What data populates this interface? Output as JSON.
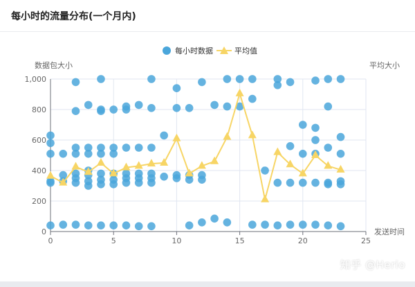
{
  "page": {
    "title": "每小时的流量分布(一个月内)",
    "watermark": "知乎 @Herio"
  },
  "colors": {
    "scatter": "#4aa6db",
    "line": "#f7d565",
    "axis": "#6e7079",
    "grid": "#e0e6f1",
    "text": "#666666"
  },
  "chart_data": {
    "type": "scatter",
    "title": "",
    "ylabel_left": "数据包大小",
    "ylabel_right": "平均大小",
    "xlabel": "发送时间",
    "xlim": [
      0,
      25
    ],
    "ylim": [
      0,
      1000
    ],
    "xticks": [
      0,
      5,
      10,
      15,
      20,
      25
    ],
    "yticks": [
      0,
      200,
      400,
      600,
      800,
      1000
    ],
    "ytick_labels": [
      "0",
      "200",
      "400",
      "600",
      "800",
      "1,000"
    ],
    "legend": [
      "每小时数据",
      "平均值"
    ],
    "legend_position": "top-center",
    "grid": true,
    "series": [
      {
        "name": "每小时数据",
        "type": "scatter",
        "points": [
          [
            0,
            40
          ],
          [
            0,
            320
          ],
          [
            0,
            330
          ],
          [
            0,
            510
          ],
          [
            0,
            580
          ],
          [
            0,
            630
          ],
          [
            1,
            45
          ],
          [
            1,
            330
          ],
          [
            1,
            370
          ],
          [
            1,
            510
          ],
          [
            2,
            45
          ],
          [
            2,
            320
          ],
          [
            2,
            350
          ],
          [
            2,
            380
          ],
          [
            2,
            510
          ],
          [
            2,
            550
          ],
          [
            2,
            790
          ],
          [
            2,
            980
          ],
          [
            3,
            40
          ],
          [
            3,
            300
          ],
          [
            3,
            330
          ],
          [
            3,
            370
          ],
          [
            3,
            400
          ],
          [
            3,
            510
          ],
          [
            3,
            550
          ],
          [
            3,
            830
          ],
          [
            4,
            40
          ],
          [
            4,
            310
          ],
          [
            4,
            340
          ],
          [
            4,
            380
          ],
          [
            4,
            510
          ],
          [
            4,
            550
          ],
          [
            4,
            790
          ],
          [
            4,
            800
          ],
          [
            4,
            1000
          ],
          [
            5,
            40
          ],
          [
            5,
            310
          ],
          [
            5,
            340
          ],
          [
            5,
            380
          ],
          [
            5,
            510
          ],
          [
            5,
            550
          ],
          [
            5,
            800
          ],
          [
            6,
            40
          ],
          [
            6,
            320
          ],
          [
            6,
            350
          ],
          [
            6,
            380
          ],
          [
            6,
            550
          ],
          [
            6,
            800
          ],
          [
            6,
            820
          ],
          [
            7,
            35
          ],
          [
            7,
            320
          ],
          [
            7,
            350
          ],
          [
            7,
            380
          ],
          [
            7,
            550
          ],
          [
            7,
            830
          ],
          [
            8,
            35
          ],
          [
            8,
            320
          ],
          [
            8,
            350
          ],
          [
            8,
            380
          ],
          [
            8,
            550
          ],
          [
            8,
            810
          ],
          [
            8,
            1000
          ],
          [
            9,
            360
          ],
          [
            9,
            630
          ],
          [
            10,
            350
          ],
          [
            10,
            370
          ],
          [
            10,
            810
          ],
          [
            10,
            940
          ],
          [
            11,
            40
          ],
          [
            11,
            340
          ],
          [
            11,
            370
          ],
          [
            11,
            810
          ],
          [
            12,
            60
          ],
          [
            12,
            340
          ],
          [
            12,
            370
          ],
          [
            12,
            980
          ],
          [
            13,
            85
          ],
          [
            13,
            830
          ],
          [
            14,
            60
          ],
          [
            14,
            820
          ],
          [
            14,
            1000
          ],
          [
            15,
            820
          ],
          [
            15,
            1000
          ],
          [
            16,
            45
          ],
          [
            16,
            870
          ],
          [
            16,
            1000
          ],
          [
            17,
            45
          ],
          [
            17,
            400
          ],
          [
            18,
            40
          ],
          [
            18,
            320
          ],
          [
            18,
            960
          ],
          [
            18,
            1000
          ],
          [
            19,
            45
          ],
          [
            19,
            320
          ],
          [
            19,
            560
          ],
          [
            19,
            980
          ],
          [
            20,
            45
          ],
          [
            20,
            320
          ],
          [
            20,
            510
          ],
          [
            20,
            700
          ],
          [
            21,
            45
          ],
          [
            21,
            320
          ],
          [
            21,
            510
          ],
          [
            21,
            600
          ],
          [
            21,
            680
          ],
          [
            21,
            990
          ],
          [
            22,
            40
          ],
          [
            22,
            310
          ],
          [
            22,
            320
          ],
          [
            22,
            550
          ],
          [
            22,
            820
          ],
          [
            22,
            1000
          ],
          [
            23,
            35
          ],
          [
            23,
            310
          ],
          [
            23,
            330
          ],
          [
            23,
            510
          ],
          [
            23,
            620
          ],
          [
            23,
            1000
          ]
        ]
      },
      {
        "name": "平均值",
        "type": "line",
        "x": [
          0,
          1,
          2,
          3,
          4,
          5,
          6,
          7,
          8,
          9,
          10,
          11,
          12,
          13,
          14,
          15,
          16,
          17,
          18,
          19,
          20,
          21,
          22,
          23
        ],
        "y": [
          365,
          320,
          425,
          390,
          450,
          380,
          420,
          430,
          445,
          450,
          610,
          380,
          430,
          460,
          620,
          905,
          630,
          210,
          520,
          440,
          380,
          500,
          430,
          405
        ]
      }
    ]
  }
}
